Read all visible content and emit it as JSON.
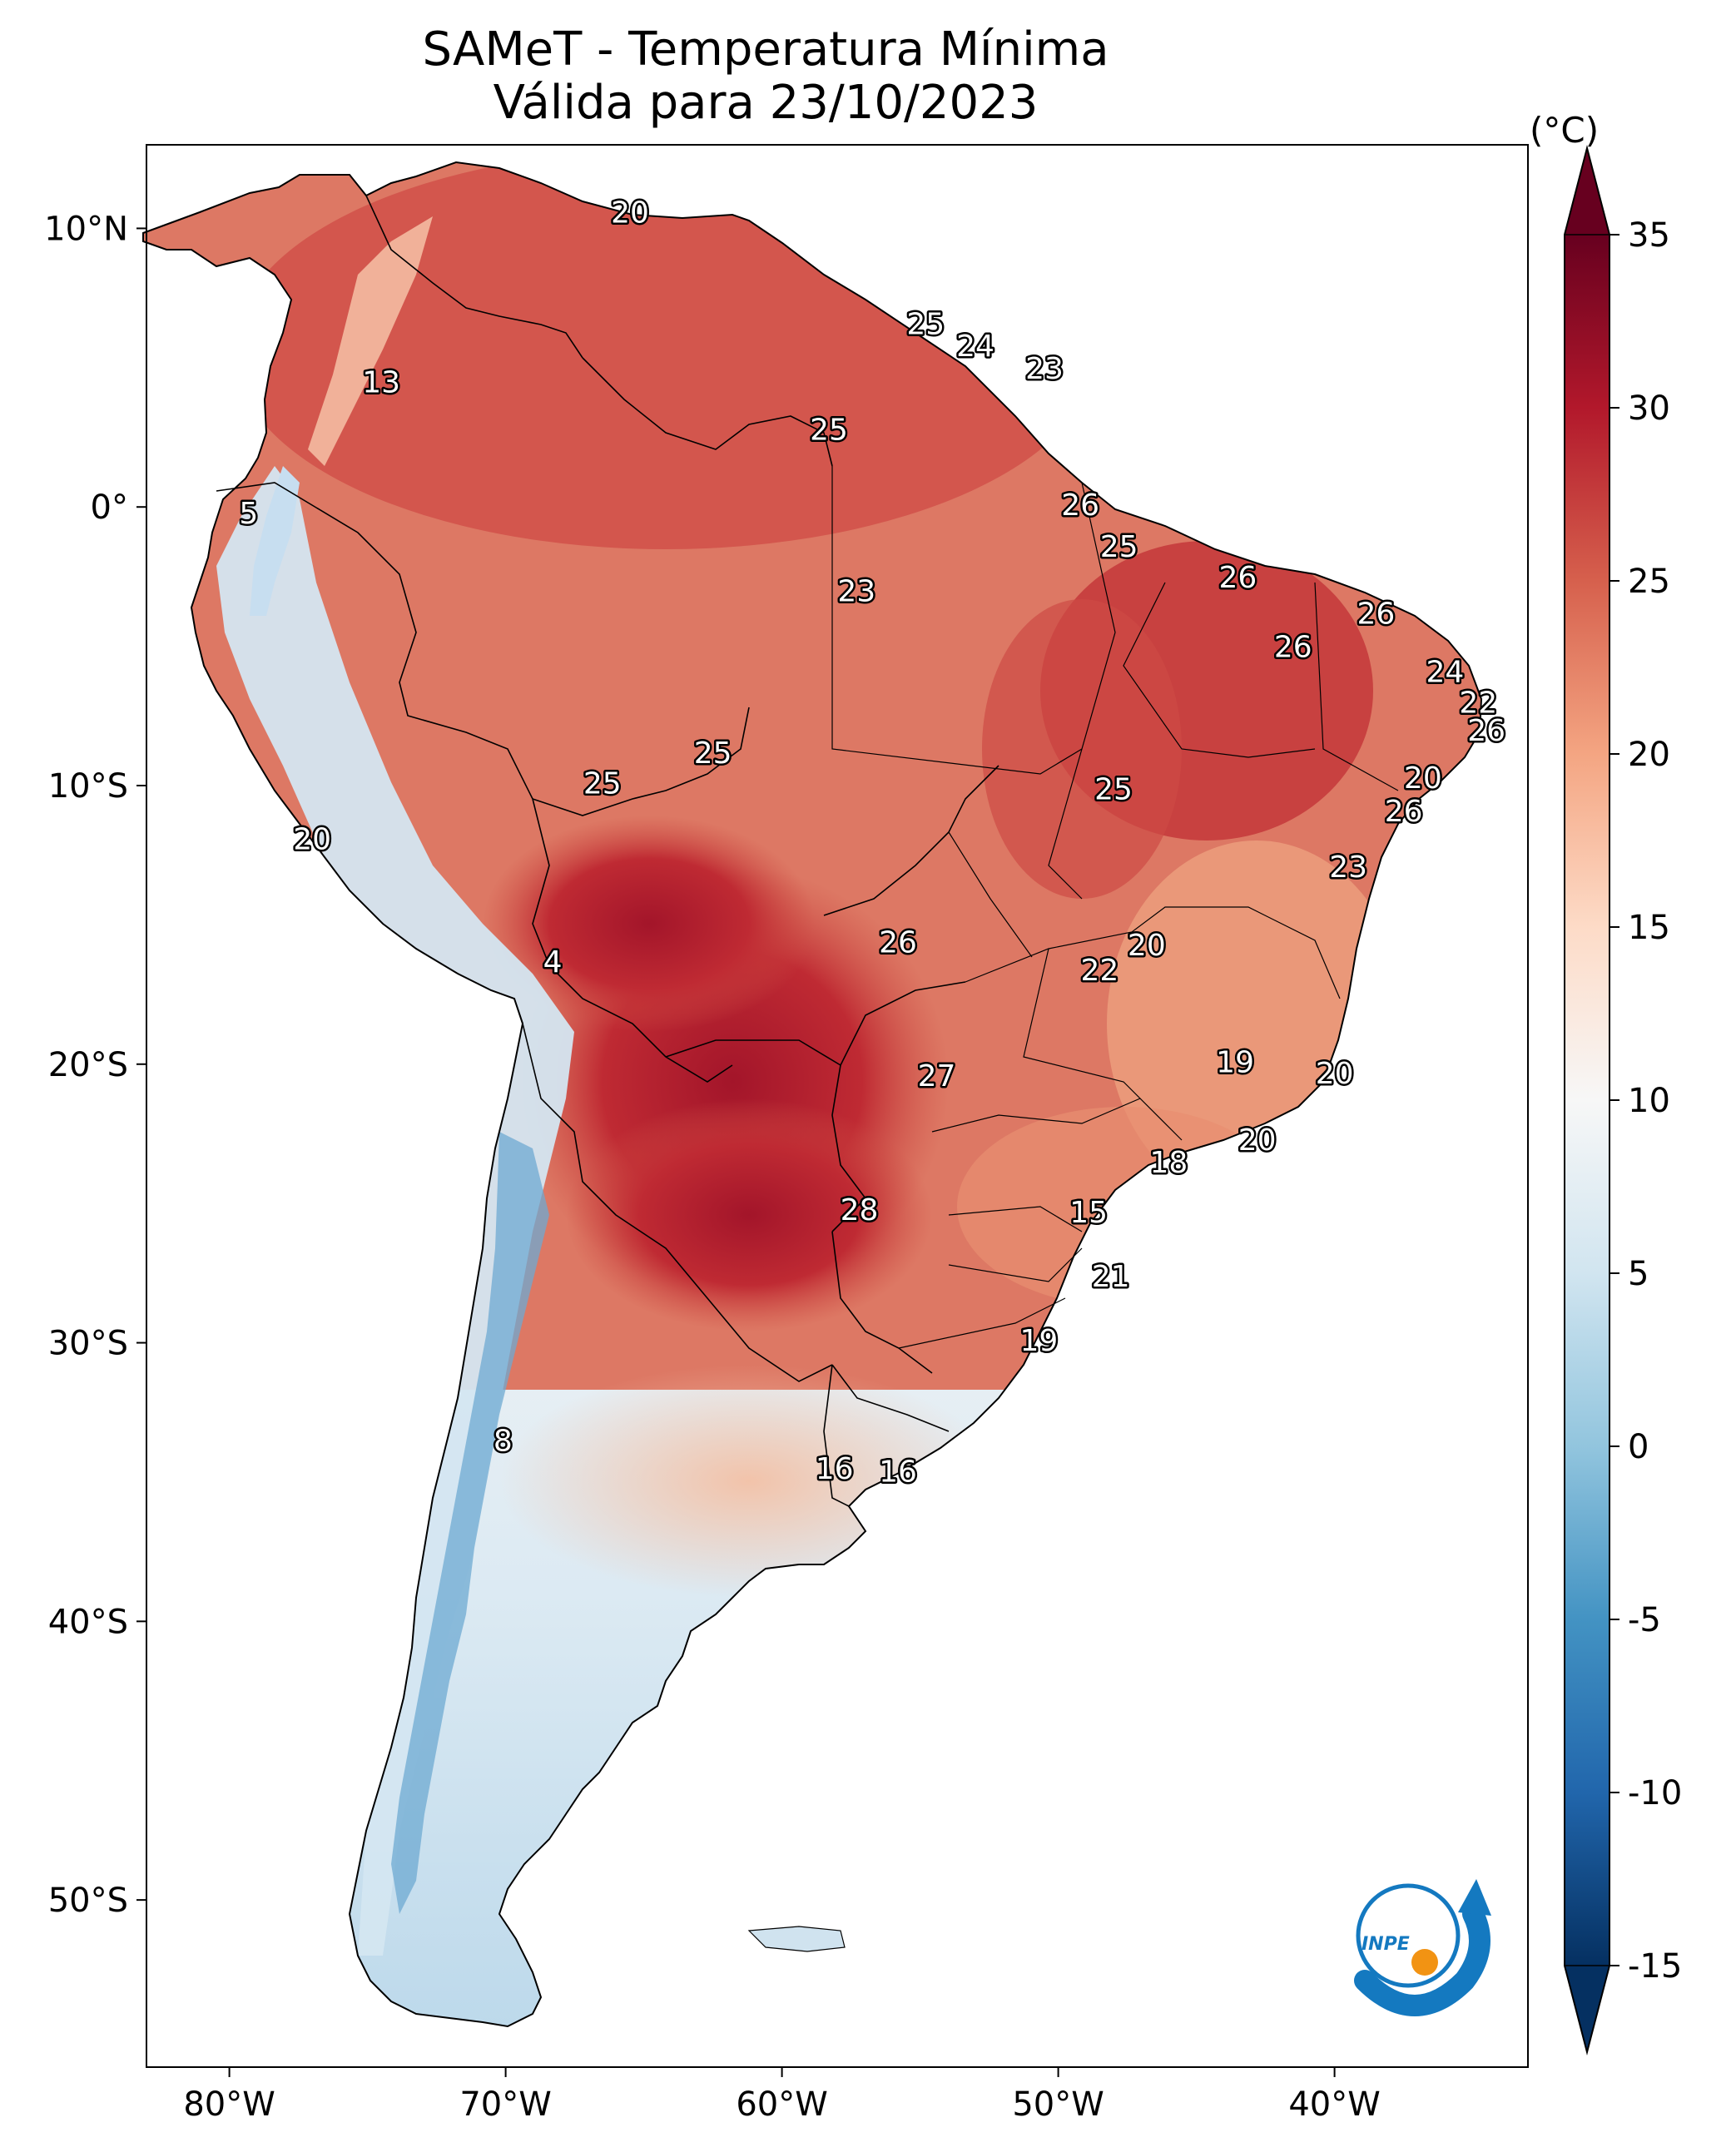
{
  "title": {
    "line1": "SAMeT - Temperatura Mínima",
    "line2": "Válida para 23/10/2023"
  },
  "map": {
    "lon_range": [
      -83,
      -33
    ],
    "lat_range": [
      -56,
      13
    ],
    "lon_ticks": [
      {
        "value": -80,
        "label": "80°W"
      },
      {
        "value": -70,
        "label": "70°W"
      },
      {
        "value": -60,
        "label": "60°W"
      },
      {
        "value": -50,
        "label": "50°W"
      },
      {
        "value": -40,
        "label": "40°W"
      }
    ],
    "lat_ticks": [
      {
        "value": 10,
        "label": "10°N"
      },
      {
        "value": 0,
        "label": "0°"
      },
      {
        "value": -10,
        "label": "10°S"
      },
      {
        "value": -20,
        "label": "20°S"
      },
      {
        "value": -30,
        "label": "30°S"
      },
      {
        "value": -40,
        "label": "40°S"
      },
      {
        "value": -50,
        "label": "50°S"
      }
    ],
    "temperature_labels": [
      {
        "lon": -65.5,
        "lat": 10.6,
        "text": "20"
      },
      {
        "lon": -54.8,
        "lat": 6.6,
        "text": "25"
      },
      {
        "lon": -53.0,
        "lat": 5.8,
        "text": "24"
      },
      {
        "lon": -50.5,
        "lat": 5.0,
        "text": "23"
      },
      {
        "lon": -74.5,
        "lat": 4.5,
        "text": "13"
      },
      {
        "lon": -58.3,
        "lat": 2.8,
        "text": "25"
      },
      {
        "lon": -49.2,
        "lat": 0.1,
        "text": "26"
      },
      {
        "lon": -79.3,
        "lat": -0.2,
        "text": "5"
      },
      {
        "lon": -47.8,
        "lat": -1.4,
        "text": "25"
      },
      {
        "lon": -43.5,
        "lat": -2.5,
        "text": "26"
      },
      {
        "lon": -57.3,
        "lat": -3.0,
        "text": "23"
      },
      {
        "lon": -38.5,
        "lat": -3.8,
        "text": "26"
      },
      {
        "lon": -41.5,
        "lat": -5.0,
        "text": "26"
      },
      {
        "lon": -36.0,
        "lat": -5.9,
        "text": "24"
      },
      {
        "lon": -34.8,
        "lat": -7.0,
        "text": "22"
      },
      {
        "lon": -34.5,
        "lat": -8.0,
        "text": "26"
      },
      {
        "lon": -62.5,
        "lat": -8.8,
        "text": "25"
      },
      {
        "lon": -36.8,
        "lat": -9.7,
        "text": "20"
      },
      {
        "lon": -66.5,
        "lat": -9.9,
        "text": "25"
      },
      {
        "lon": -48.0,
        "lat": -10.1,
        "text": "25"
      },
      {
        "lon": -37.5,
        "lat": -10.9,
        "text": "26"
      },
      {
        "lon": -77.0,
        "lat": -11.9,
        "text": "20"
      },
      {
        "lon": -39.5,
        "lat": -12.9,
        "text": "23"
      },
      {
        "lon": -55.8,
        "lat": -15.6,
        "text": "26"
      },
      {
        "lon": -46.8,
        "lat": -15.7,
        "text": "20"
      },
      {
        "lon": -48.5,
        "lat": -16.6,
        "text": "22"
      },
      {
        "lon": -68.3,
        "lat": -16.3,
        "text": "4"
      },
      {
        "lon": -43.6,
        "lat": -19.9,
        "text": "19"
      },
      {
        "lon": -40.0,
        "lat": -20.3,
        "text": "20"
      },
      {
        "lon": -54.4,
        "lat": -20.4,
        "text": "27"
      },
      {
        "lon": -42.8,
        "lat": -22.7,
        "text": "20"
      },
      {
        "lon": -46.0,
        "lat": -23.5,
        "text": "18"
      },
      {
        "lon": -57.2,
        "lat": -25.2,
        "text": "28"
      },
      {
        "lon": -48.9,
        "lat": -25.3,
        "text": "15"
      },
      {
        "lon": -48.1,
        "lat": -27.6,
        "text": "21"
      },
      {
        "lon": -50.7,
        "lat": -29.9,
        "text": "19"
      },
      {
        "lon": -70.1,
        "lat": -33.5,
        "text": "8"
      },
      {
        "lon": -58.1,
        "lat": -34.5,
        "text": "16"
      },
      {
        "lon": -55.8,
        "lat": -34.6,
        "text": "16"
      }
    ]
  },
  "colorbar": {
    "unit": "(°C)",
    "min": -15,
    "max": 35,
    "ticks": [
      {
        "value": 35,
        "label": "35"
      },
      {
        "value": 30,
        "label": "30"
      },
      {
        "value": 25,
        "label": "25"
      },
      {
        "value": 20,
        "label": "20"
      },
      {
        "value": 15,
        "label": "15"
      },
      {
        "value": 10,
        "label": "10"
      },
      {
        "value": 5,
        "label": "5"
      },
      {
        "value": 0,
        "label": "0"
      },
      {
        "value": -5,
        "label": "-5"
      },
      {
        "value": -10,
        "label": "-10"
      },
      {
        "value": -15,
        "label": "-15"
      }
    ],
    "colors": [
      "#053061",
      "#2166ac",
      "#4393c3",
      "#92c5de",
      "#d1e5f0",
      "#f7f7f7",
      "#fddbc7",
      "#f4a582",
      "#d6604d",
      "#b2182b",
      "#67001f"
    ]
  },
  "logo": {
    "text": "INPE",
    "colors": {
      "blue": "#1479c0",
      "orange": "#f29313"
    }
  }
}
